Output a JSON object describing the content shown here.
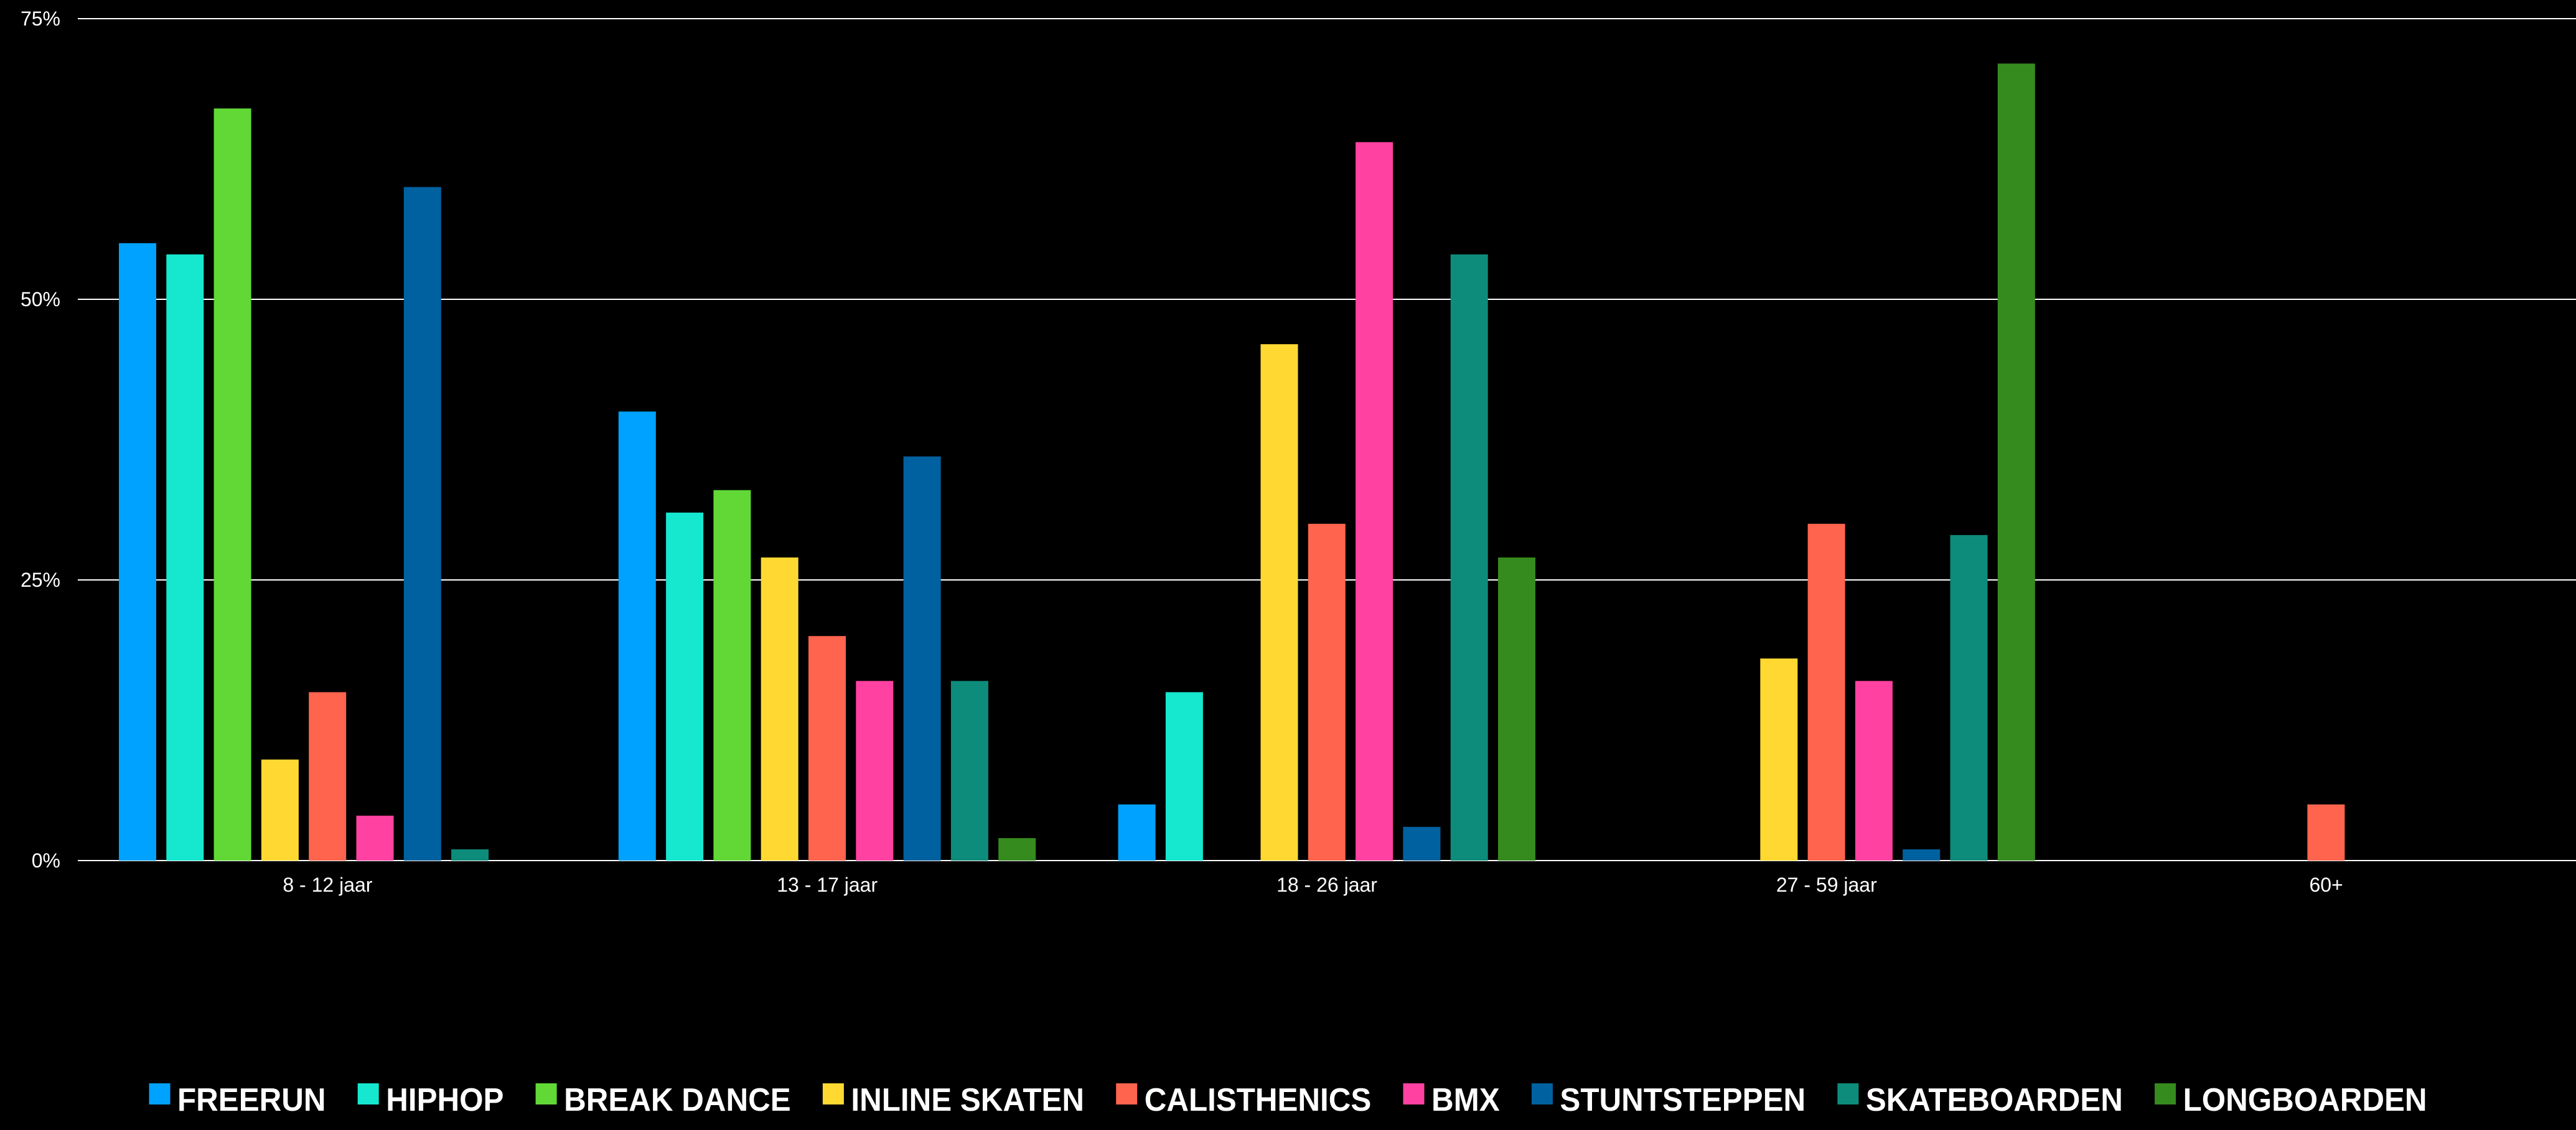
{
  "chart_data": {
    "type": "bar",
    "title": "",
    "xlabel": "",
    "ylabel": "",
    "ylim": [
      0,
      75
    ],
    "y_ticks": [
      "0%",
      "25%",
      "50%",
      "75%"
    ],
    "grid": true,
    "legend_position": "bottom",
    "categories": [
      "8 - 12 jaar",
      "13 - 17 jaar",
      "18 - 26 jaar",
      "27 - 59 jaar",
      "60+"
    ],
    "series": [
      {
        "name": "FREERUN",
        "color": "#00A2FF",
        "values": [
          55,
          40,
          5,
          0,
          0
        ]
      },
      {
        "name": "HIPHOP",
        "color": "#16E7CF",
        "values": [
          54,
          31,
          15,
          0,
          0
        ]
      },
      {
        "name": "BREAK DANCE",
        "color": "#61D836",
        "values": [
          67,
          33,
          0,
          0,
          0
        ]
      },
      {
        "name": "INLINE SKATEN",
        "color": "#FFD932",
        "values": [
          9,
          27,
          46,
          18,
          0
        ]
      },
      {
        "name": "CALISTHENICS",
        "color": "#FF644E",
        "values": [
          15,
          20,
          30,
          30,
          5
        ]
      },
      {
        "name": "BMX",
        "color": "#FF42A1",
        "values": [
          4,
          16,
          64,
          16,
          0
        ]
      },
      {
        "name": "STUNTSTEPPEN",
        "color": "#0061A0",
        "values": [
          60,
          36,
          3,
          1,
          0
        ]
      },
      {
        "name": "SKATEBOARDEN",
        "color": "#0E8C7B",
        "values": [
          1,
          16,
          54,
          29,
          0
        ]
      },
      {
        "name": "LONGBOARDEN",
        "color": "#368B1E",
        "values": [
          0,
          2,
          27,
          71,
          0
        ]
      }
    ]
  }
}
